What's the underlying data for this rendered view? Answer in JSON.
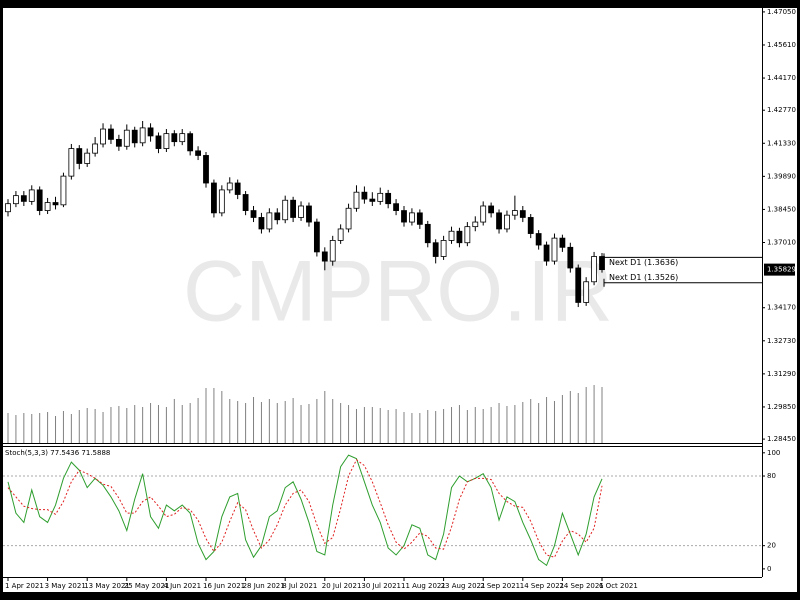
{
  "chart_data": [
    {
      "type": "candlestick",
      "watermark": "CMPRO.IR",
      "categories": [
        "1 Apr 2021",
        null,
        null,
        null,
        null,
        "3 May 2021",
        null,
        null,
        null,
        null,
        "13 May 2021",
        null,
        null,
        null,
        null,
        "25 May 2021",
        null,
        null,
        null,
        null,
        "4 Jun 2021",
        null,
        null,
        null,
        null,
        "16 Jun 2021",
        null,
        null,
        null,
        null,
        "28 Jun 2021",
        null,
        null,
        null,
        null,
        "8 Jul 2021",
        null,
        null,
        null,
        null,
        "20 Jul 2021",
        null,
        null,
        null,
        null,
        "30 Jul 2021",
        null,
        null,
        null,
        null,
        "11 Aug 2021",
        null,
        null,
        null,
        null,
        "23 Aug 2021",
        null,
        null,
        null,
        null,
        "2 Sep 2021",
        null,
        null,
        null,
        null,
        "14 Sep 2021",
        null,
        null,
        null,
        null,
        "24 Sep 2021",
        null,
        null,
        null,
        null,
        "6 Oct 2021"
      ],
      "open": [
        1.3835,
        1.387,
        1.3905,
        1.388,
        1.393,
        1.384,
        1.3875,
        1.3865,
        1.399,
        1.411,
        1.4045,
        1.409,
        1.413,
        1.4195,
        1.415,
        1.412,
        1.419,
        1.4135,
        1.42,
        1.4165,
        1.411,
        1.4175,
        1.414,
        1.4175,
        1.41,
        1.408,
        1.396,
        1.383,
        1.393,
        1.396,
        1.391,
        1.384,
        1.381,
        1.376,
        1.383,
        1.38,
        1.3885,
        1.381,
        1.386,
        1.379,
        1.366,
        1.362,
        1.371,
        1.376,
        1.385,
        1.392,
        1.389,
        1.388,
        1.3915,
        1.387,
        1.384,
        1.379,
        1.383,
        1.378,
        1.37,
        1.364,
        1.371,
        1.375,
        1.37,
        1.377,
        1.379,
        1.386,
        1.383,
        1.376,
        1.382,
        1.384,
        1.381,
        1.374,
        1.369,
        1.362,
        1.372,
        1.368,
        1.359,
        1.344,
        1.353,
        1.364
      ],
      "high": [
        1.389,
        1.3925,
        1.3925,
        1.395,
        1.3945,
        1.3895,
        1.39,
        1.4005,
        1.413,
        1.4125,
        1.411,
        1.416,
        1.422,
        1.4215,
        1.417,
        1.4215,
        1.4205,
        1.423,
        1.422,
        1.418,
        1.4195,
        1.419,
        1.4195,
        1.4185,
        1.412,
        1.4095,
        1.3975,
        1.395,
        1.3985,
        1.3975,
        1.3925,
        1.386,
        1.383,
        1.385,
        1.385,
        1.3905,
        1.39,
        1.388,
        1.3875,
        1.3805,
        1.368,
        1.373,
        1.378,
        1.387,
        1.395,
        1.3945,
        1.392,
        1.394,
        1.393,
        1.389,
        1.386,
        1.385,
        1.3845,
        1.3795,
        1.3715,
        1.373,
        1.377,
        1.3765,
        1.379,
        1.3815,
        1.388,
        1.3875,
        1.3845,
        1.384,
        1.3905,
        1.386,
        1.3825,
        1.3755,
        1.3705,
        1.374,
        1.3735,
        1.37,
        1.3605,
        1.355,
        1.366,
        1.3655
      ],
      "low": [
        1.3815,
        1.3855,
        1.386,
        1.3865,
        1.382,
        1.3825,
        1.3845,
        1.3855,
        1.3975,
        1.402,
        1.403,
        1.4075,
        1.4115,
        1.413,
        1.41,
        1.4105,
        1.4115,
        1.412,
        1.414,
        1.409,
        1.4095,
        1.412,
        1.4125,
        1.408,
        1.406,
        1.394,
        1.381,
        1.3815,
        1.3915,
        1.389,
        1.382,
        1.379,
        1.374,
        1.3745,
        1.378,
        1.3785,
        1.379,
        1.3795,
        1.377,
        1.364,
        1.358,
        1.36,
        1.3695,
        1.3745,
        1.3835,
        1.387,
        1.386,
        1.3865,
        1.385,
        1.382,
        1.377,
        1.3775,
        1.376,
        1.368,
        1.361,
        1.3625,
        1.3695,
        1.368,
        1.3685,
        1.375,
        1.3775,
        1.381,
        1.374,
        1.3745,
        1.38,
        1.379,
        1.372,
        1.367,
        1.36,
        1.3605,
        1.366,
        1.357,
        1.342,
        1.3425,
        1.3515,
        1.357
      ],
      "close": [
        1.387,
        1.3905,
        1.388,
        1.393,
        1.384,
        1.3875,
        1.3865,
        1.399,
        1.411,
        1.4045,
        1.409,
        1.413,
        1.4195,
        1.415,
        1.412,
        1.419,
        1.4135,
        1.42,
        1.4165,
        1.411,
        1.4175,
        1.414,
        1.4175,
        1.41,
        1.408,
        1.396,
        1.383,
        1.393,
        1.396,
        1.391,
        1.384,
        1.381,
        1.376,
        1.383,
        1.38,
        1.3885,
        1.381,
        1.386,
        1.379,
        1.366,
        1.362,
        1.371,
        1.376,
        1.385,
        1.392,
        1.389,
        1.388,
        1.3915,
        1.387,
        1.384,
        1.379,
        1.383,
        1.378,
        1.37,
        1.364,
        1.371,
        1.375,
        1.37,
        1.377,
        1.379,
        1.386,
        1.383,
        1.376,
        1.382,
        1.384,
        1.381,
        1.374,
        1.369,
        1.362,
        1.372,
        1.368,
        1.359,
        1.344,
        1.353,
        1.364,
        1.35829
      ],
      "volume": [
        30,
        28,
        30,
        29,
        30,
        31,
        27,
        32,
        29,
        33,
        35,
        34,
        31,
        36,
        37,
        35,
        38,
        36,
        40,
        38,
        36,
        44,
        38,
        40,
        45,
        55,
        55,
        52,
        44,
        42,
        40,
        46,
        41,
        44,
        40,
        42,
        45,
        38,
        39,
        44,
        52,
        44,
        40,
        38,
        34,
        36,
        36,
        35,
        33,
        34,
        31,
        30,
        30,
        33,
        32,
        34,
        36,
        38,
        33,
        36,
        34,
        36,
        40,
        37,
        38,
        41,
        44,
        40,
        46,
        42,
        48,
        52,
        50,
        56,
        58,
        56
      ],
      "up_color": "#ffffff",
      "down_color": "#000000",
      "volume_color": "#808080",
      "ylim": [
        1.2828,
        1.4722
      ],
      "yticks": [
        {
          "value": 1.4705,
          "label": "1.47050"
        },
        {
          "value": 1.4561,
          "label": "1.45610"
        },
        {
          "value": 1.4417,
          "label": "1.44170"
        },
        {
          "value": 1.4277,
          "label": "1.42770"
        },
        {
          "value": 1.4133,
          "label": "1.41330"
        },
        {
          "value": 1.3989,
          "label": "1.39890"
        },
        {
          "value": 1.3845,
          "label": "1.38450"
        },
        {
          "value": 1.3701,
          "label": "1.37010"
        },
        {
          "value": 1.3417,
          "label": "1.34170"
        },
        {
          "value": 1.3273,
          "label": "1.32730"
        },
        {
          "value": 1.3129,
          "label": "1.31290"
        },
        {
          "value": 1.2985,
          "label": "1.29850"
        },
        {
          "value": 1.2845,
          "label": "1.28450"
        }
      ],
      "current_price": 1.35829,
      "levels": [
        {
          "value": 1.3636,
          "label": "Next D1 (1.3636)"
        },
        {
          "value": 1.3526,
          "label": "Next D1 (1.3526)"
        }
      ]
    },
    {
      "type": "line",
      "title": "Stoch(5,3,3) 77.5436 71.5888",
      "ylim": [
        -7,
        105
      ],
      "yticks": [
        100,
        80,
        20,
        0
      ],
      "levels": [
        80,
        20
      ],
      "series": [
        {
          "color": "#2e9e2e",
          "dashed": false,
          "values": [
            75,
            48,
            40,
            68,
            45,
            40,
            55,
            78,
            92,
            85,
            70,
            78,
            72,
            62,
            50,
            33,
            60,
            82,
            45,
            35,
            55,
            50,
            55,
            48,
            22,
            8,
            15,
            45,
            62,
            65,
            25,
            10,
            20,
            45,
            50,
            70,
            75,
            60,
            40,
            15,
            12,
            55,
            88,
            98,
            95,
            75,
            55,
            40,
            18,
            12,
            20,
            38,
            35,
            12,
            8,
            30,
            70,
            80,
            75,
            78,
            82,
            70,
            42,
            62,
            58,
            40,
            25,
            8,
            3,
            20,
            48,
            30,
            12,
            30,
            62,
            77.5436
          ]
        },
        {
          "color": "#e02020",
          "dashed": true,
          "values": [
            70,
            62,
            54,
            52,
            51,
            51,
            47,
            58,
            75,
            85,
            82,
            78,
            73,
            71,
            61,
            48,
            48,
            58,
            62,
            54,
            45,
            47,
            53,
            51,
            42,
            26,
            15,
            23,
            41,
            57,
            51,
            33,
            18,
            25,
            38,
            55,
            65,
            68,
            58,
            38,
            22,
            27,
            52,
            80,
            94,
            89,
            75,
            57,
            38,
            23,
            17,
            23,
            31,
            28,
            18,
            17,
            36,
            60,
            75,
            78,
            78,
            77,
            65,
            58,
            54,
            53,
            41,
            24,
            12,
            10,
            24,
            33,
            30,
            23,
            35,
            71.5888
          ]
        }
      ]
    }
  ]
}
